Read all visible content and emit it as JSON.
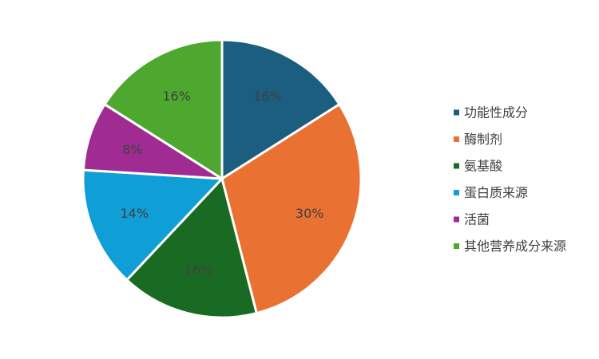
{
  "chart_data": {
    "type": "pie",
    "title": "",
    "legend_position": "right",
    "categories": [
      "功能性成分",
      "酶制剂",
      "氨基酸",
      "蛋白质来源",
      "活菌",
      "其他营养成分来源"
    ],
    "values": [
      16,
      30,
      16,
      14,
      8,
      16
    ],
    "labels": [
      "16%",
      "30%",
      "16%",
      "14%",
      "8%",
      "16%"
    ],
    "colors": [
      "#1b5e80",
      "#e97132",
      "#196b24",
      "#0f9ed5",
      "#a02b93",
      "#4ea72e"
    ]
  }
}
